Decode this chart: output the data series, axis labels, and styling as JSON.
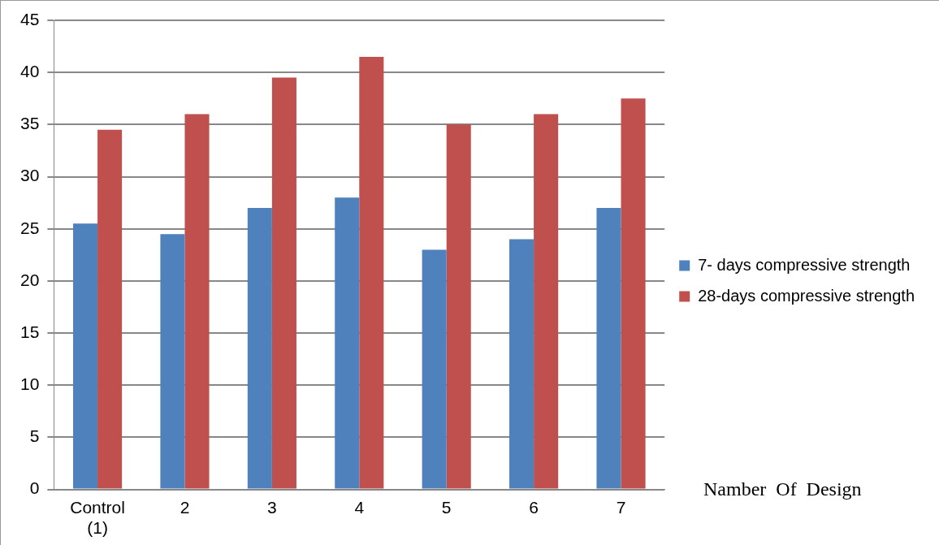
{
  "chart_data": {
    "type": "bar",
    "xlabel": "Namber  Of  Design",
    "categories": [
      "Control (1)",
      "2",
      "3",
      "4",
      "5",
      "6",
      "7"
    ],
    "series": [
      {
        "name": "7- days compressive strength",
        "color": "#4f81bd",
        "values": [
          25.5,
          24.5,
          27,
          28,
          23,
          24,
          27
        ]
      },
      {
        "name": "28-days compressive strength",
        "color": "#c0504d",
        "values": [
          34.5,
          36,
          39.5,
          41.5,
          35,
          36,
          37.5
        ]
      }
    ],
    "ylim": [
      0,
      45
    ],
    "yticks": [
      0,
      5,
      10,
      15,
      20,
      25,
      30,
      35,
      40,
      45
    ],
    "grid": "y",
    "legend": "right"
  }
}
